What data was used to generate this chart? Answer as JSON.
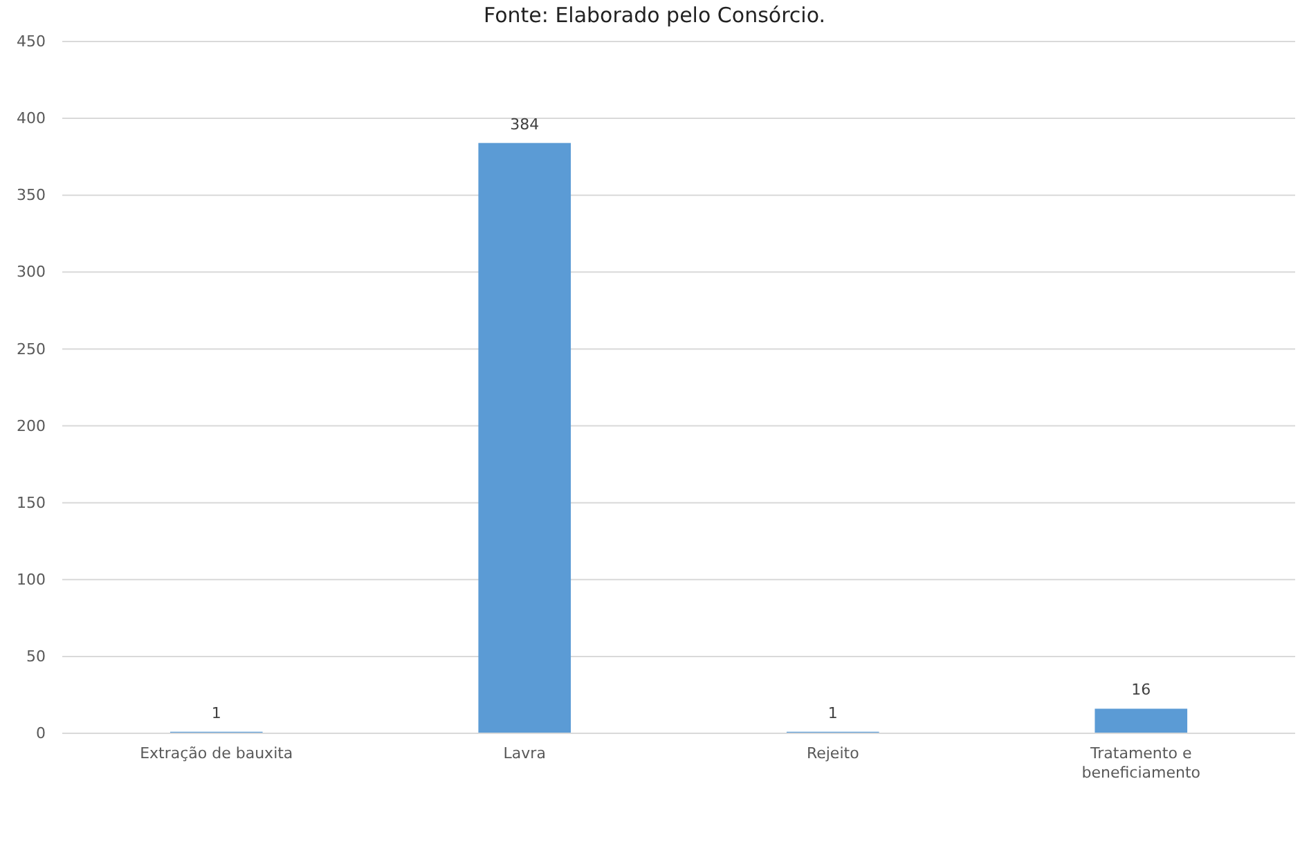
{
  "chart_data": {
    "type": "bar",
    "categories": [
      "Extração de bauxita",
      "Lavra",
      "Rejeito",
      "Tratamento e beneficiamento"
    ],
    "values": [
      1,
      384,
      1,
      16
    ],
    "color": "#5b9bd5",
    "ylim": [
      0,
      450
    ],
    "yticks": [
      0,
      50,
      100,
      150,
      200,
      250,
      300,
      350,
      400,
      450
    ],
    "grid": "y",
    "data_labels": true,
    "annotations": [
      "Fonte: Elaborado pelo Consórcio."
    ]
  }
}
